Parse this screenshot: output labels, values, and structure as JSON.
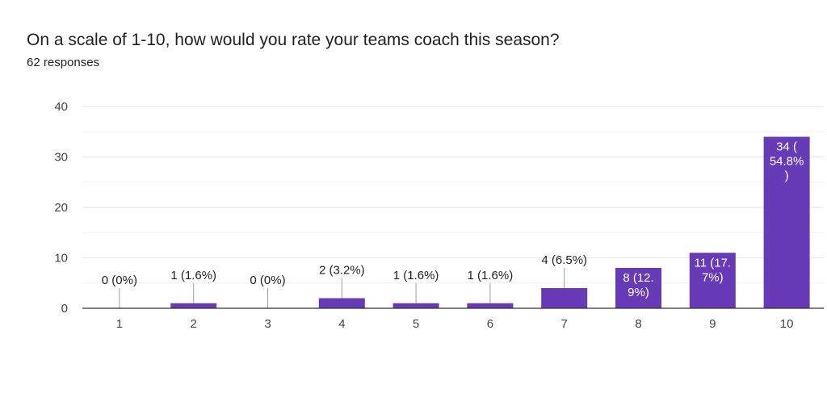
{
  "question": {
    "title": "On a scale of 1-10, how would you rate your teams coach this season?",
    "responses": "62 responses"
  },
  "colors": {
    "bar": "#673ab7",
    "grid": "#e6e6e6",
    "axis": "#333333",
    "label_dark": "#222222",
    "label_light": "#ffffff"
  },
  "chart_data": {
    "type": "bar",
    "categories": [
      "1",
      "2",
      "3",
      "4",
      "5",
      "6",
      "7",
      "8",
      "9",
      "10"
    ],
    "values": [
      0,
      1,
      0,
      2,
      1,
      1,
      4,
      8,
      11,
      34
    ],
    "data_labels": [
      [
        "0 (0%)"
      ],
      [
        "1 (1.6%)"
      ],
      [
        "0 (0%)"
      ],
      [
        "2 (3.2%)"
      ],
      [
        "1 (1.6%)"
      ],
      [
        "1 (1.6%)"
      ],
      [
        "4 (6.5%)"
      ],
      [
        "8 (12.",
        "9%)"
      ],
      [
        "11 (17.",
        "7%)"
      ],
      [
        "34 (",
        "54.8%",
        ")"
      ]
    ],
    "label_inside": [
      false,
      false,
      false,
      false,
      false,
      false,
      false,
      true,
      true,
      true
    ],
    "yticks": [
      "0",
      "10",
      "20",
      "30",
      "40"
    ],
    "ylim": [
      0,
      40
    ],
    "grid": true
  }
}
